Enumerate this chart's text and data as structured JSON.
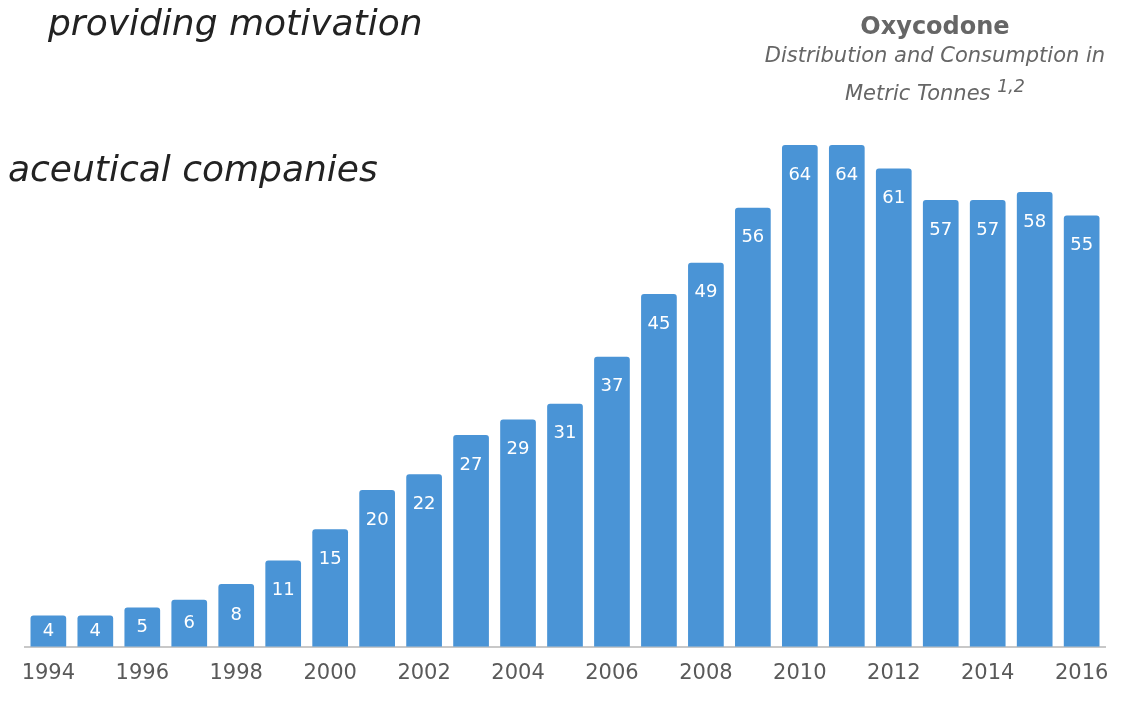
{
  "chart_data": {
    "type": "bar",
    "title": "Oxycodone",
    "subtitle": "Distribution and Consumption in Metric Tonnes $^{1,2}$",
    "annotations": [
      "providing motivation",
      "aceutical companies"
    ],
    "categories": [
      "1994",
      null,
      "1996",
      null,
      "1998",
      null,
      "2000",
      null,
      "2002",
      null,
      "2004",
      null,
      "2006",
      null,
      "2008",
      null,
      "2010",
      null,
      "2012",
      null,
      "2014",
      null,
      "2016"
    ],
    "values": [
      4,
      4,
      5,
      6,
      8,
      11,
      15,
      20,
      22,
      27,
      29,
      31,
      37,
      45,
      49,
      56,
      64,
      64,
      61,
      57,
      57,
      58,
      55
    ],
    "color": "#4a94d6",
    "data_labels": true,
    "grid": false,
    "legend": false
  }
}
